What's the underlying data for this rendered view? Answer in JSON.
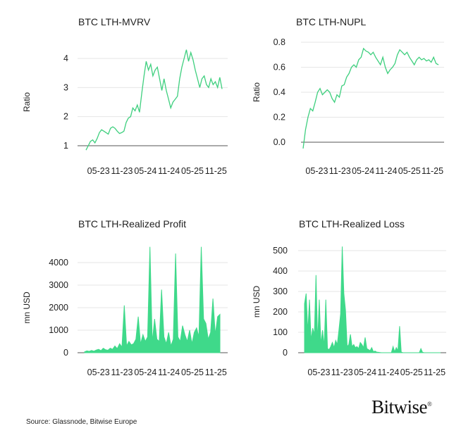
{
  "source": "Source: Glassnode, Bitwise Europe",
  "logo": "Bitwise",
  "colors": {
    "line": "#3ecf7e",
    "fill": "#3fd98a",
    "axis": "#555555",
    "grid": "#e6e6e6"
  },
  "chart_data": [
    {
      "type": "line",
      "title": "BTC LTH-MVRV",
      "ylabel": "Ratio",
      "ylim": [
        0.8,
        4.4
      ],
      "yticks": [
        1,
        2,
        3,
        4
      ],
      "baseline": 1,
      "xticklabels": [
        "05-23",
        "11-23",
        "05-24",
        "11-24",
        "05-25",
        "11-25"
      ],
      "values": [
        0.85,
        1.0,
        1.15,
        1.2,
        1.1,
        1.25,
        1.45,
        1.55,
        1.5,
        1.45,
        1.4,
        1.6,
        1.65,
        1.6,
        1.5,
        1.42,
        1.45,
        1.5,
        1.8,
        1.95,
        2.0,
        2.3,
        2.2,
        2.4,
        2.15,
        2.8,
        3.4,
        3.9,
        3.6,
        3.8,
        3.4,
        3.6,
        3.7,
        3.3,
        2.9,
        3.3,
        2.9,
        2.6,
        2.3,
        2.5,
        2.6,
        2.7,
        3.3,
        3.7,
        4.0,
        4.3,
        3.9,
        4.2,
        3.95,
        3.6,
        3.3,
        3.0,
        3.3,
        3.4,
        3.1,
        3.0,
        3.3,
        3.1,
        3.2,
        3.0,
        3.35,
        2.95
      ]
    },
    {
      "type": "line",
      "title": "BTC LTH-NUPL",
      "ylabel": "Ratio",
      "ylim": [
        -0.08,
        0.8
      ],
      "yticks": [
        0.0,
        0.2,
        0.4,
        0.6,
        0.8
      ],
      "yticklabels": [
        "0.0",
        "0.2",
        "0.4",
        "0.6",
        "0.8"
      ],
      "baseline": 0,
      "xticklabels": [
        "05-23",
        "11-23",
        "05-24",
        "11-24",
        "05-25",
        "11-25"
      ],
      "values": [
        -0.05,
        0.1,
        0.2,
        0.27,
        0.25,
        0.32,
        0.4,
        0.43,
        0.38,
        0.4,
        0.42,
        0.4,
        0.35,
        0.32,
        0.38,
        0.36,
        0.45,
        0.46,
        0.52,
        0.55,
        0.6,
        0.62,
        0.6,
        0.66,
        0.68,
        0.75,
        0.73,
        0.72,
        0.7,
        0.72,
        0.68,
        0.65,
        0.62,
        0.68,
        0.6,
        0.55,
        0.58,
        0.6,
        0.63,
        0.7,
        0.74,
        0.72,
        0.7,
        0.72,
        0.68,
        0.65,
        0.62,
        0.66,
        0.68,
        0.66,
        0.67,
        0.65,
        0.66,
        0.64,
        0.68,
        0.63,
        0.62
      ]
    },
    {
      "type": "area",
      "title": "BTC LTH-Realized Profit",
      "ylabel": "mn USD",
      "ylim": [
        0,
        4800
      ],
      "yticks": [
        0,
        1000,
        2000,
        3000,
        4000
      ],
      "baseline": 0,
      "xticklabels": [
        "05-23",
        "11-23",
        "05-24",
        "11-24",
        "05-25",
        "11-25"
      ],
      "values": [
        40,
        80,
        60,
        100,
        70,
        120,
        150,
        90,
        200,
        130,
        110,
        200,
        150,
        300,
        180,
        400,
        250,
        2100,
        300,
        500,
        350,
        400,
        600,
        1600,
        380,
        800,
        500,
        700,
        4700,
        450,
        1500,
        600,
        500,
        2800,
        700,
        400,
        900,
        300,
        600,
        4400,
        700,
        500,
        1200,
        800,
        500,
        1000,
        400,
        900,
        1100,
        700,
        4700,
        1500,
        1300,
        600,
        900,
        2400,
        800,
        1600,
        1700
      ]
    },
    {
      "type": "area",
      "title": "BTC LTH-Realized Loss",
      "ylabel": "mn USD",
      "ylim": [
        0,
        530
      ],
      "yticks": [
        0,
        100,
        200,
        300,
        400,
        500
      ],
      "baseline": 0,
      "xticklabels": [
        "05-23",
        "11-23",
        "05-24",
        "11-24",
        "05-25",
        "11-25"
      ],
      "values": [
        240,
        290,
        100,
        260,
        60,
        120,
        90,
        380,
        50,
        260,
        40,
        110,
        30,
        260,
        20,
        15,
        30,
        50,
        25,
        60,
        40,
        110,
        190,
        520,
        290,
        210,
        30,
        40,
        90,
        30,
        40,
        25,
        30,
        20,
        50,
        40,
        25,
        75,
        20,
        15,
        10,
        25,
        5,
        8,
        3,
        2,
        1,
        0,
        0,
        0,
        0,
        0,
        0,
        0,
        30,
        5,
        25,
        10,
        130,
        3,
        0,
        0,
        0,
        0,
        0,
        0,
        0,
        0,
        0,
        0,
        0,
        20,
        2,
        0,
        0,
        0,
        0,
        0,
        0,
        0,
        0,
        0,
        0,
        0
      ]
    }
  ]
}
